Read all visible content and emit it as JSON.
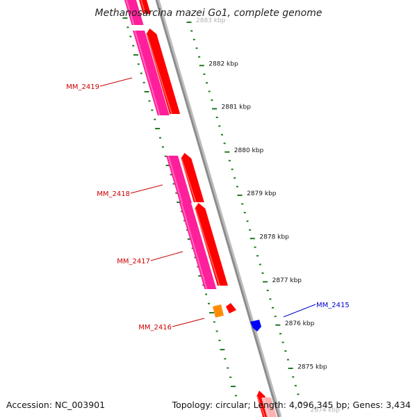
{
  "header": {
    "title": "Methanosarcina mazei Go1, complete genome"
  },
  "footer": {
    "accession": "Accession: NC_003901",
    "summary": "Topology: circular; Length: 4,096,345 bp; Genes: 3,434"
  },
  "colors": {
    "backbone": "#8c8c8c",
    "tick": "#1e7a1e",
    "cds_forward": "#ff0000",
    "gene_forward": "#ff1f9a",
    "gene_small": "#ff8c00",
    "cds_reverse": "#0000ff",
    "label_forward": "#cc0000",
    "label_reverse": "#0000cc"
  },
  "scale_labels": [
    {
      "pos_kbp": 2883,
      "text": "2883 kbp"
    },
    {
      "pos_kbp": 2882,
      "text": "2882 kbp"
    },
    {
      "pos_kbp": 2881,
      "text": "2881 kbp"
    },
    {
      "pos_kbp": 2880,
      "text": "2880 kbp"
    },
    {
      "pos_kbp": 2879,
      "text": "2879 kbp"
    },
    {
      "pos_kbp": 2878,
      "text": "2878 kbp"
    },
    {
      "pos_kbp": 2877,
      "text": "2877 kbp"
    },
    {
      "pos_kbp": 2876,
      "text": "2876 kbp"
    },
    {
      "pos_kbp": 2875,
      "text": "2875 kbp"
    },
    {
      "pos_kbp": 2874,
      "text": "2874 kbp"
    }
  ],
  "genes": [
    {
      "name": "MM_2419",
      "strand": "forward"
    },
    {
      "name": "MM_2418",
      "strand": "forward"
    },
    {
      "name": "MM_2417",
      "strand": "forward"
    },
    {
      "name": "MM_2416",
      "strand": "forward"
    },
    {
      "name": "MM_2415",
      "strand": "reverse"
    }
  ]
}
